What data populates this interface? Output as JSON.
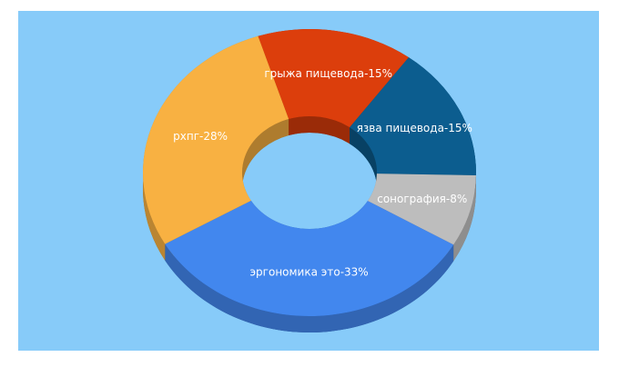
{
  "chart_data": {
    "type": "pie",
    "donut": true,
    "value_labels": [
      "грыжа пищевода-15%",
      "язва пищевода-15%",
      "сонография-8%",
      "эргономика это-33%",
      "рхпг-28%"
    ],
    "values": [
      15,
      15,
      8,
      33,
      28
    ],
    "colors": [
      "#dc3e0c",
      "#0c5d8f",
      "#bdbdbd",
      "#4287ee",
      "#f8b142"
    ],
    "background": "#87cbf9"
  }
}
